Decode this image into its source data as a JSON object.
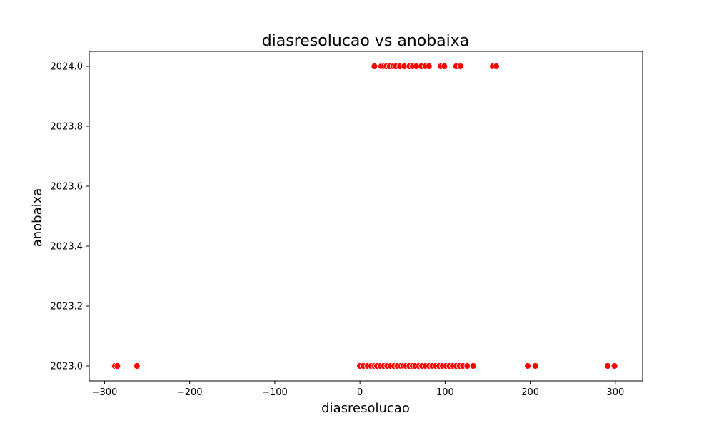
{
  "chart_data": {
    "type": "scatter",
    "title": "diasresolucao vs anobaixa",
    "xlabel": "diasresolucao",
    "ylabel": "anobaixa",
    "xlim": [
      -318,
      332
    ],
    "ylim": [
      2022.95,
      2024.05
    ],
    "x_ticks": [
      -300,
      -200,
      -100,
      0,
      100,
      200,
      300
    ],
    "x_tick_labels": [
      "−300",
      "−200",
      "−100",
      "0",
      "100",
      "200",
      "300"
    ],
    "y_ticks": [
      2023.0,
      2023.2,
      2023.4,
      2023.6,
      2023.8,
      2024.0
    ],
    "y_tick_labels": [
      "2023.0",
      "2023.2",
      "2023.4",
      "2023.6",
      "2023.8",
      "2024.0"
    ],
    "grid": false,
    "marker_color": "#ff0000",
    "marker_edge_color": "#ffffff",
    "series": [
      {
        "points": [
          {
            "x": 17,
            "y": 2024
          },
          {
            "x": 25,
            "y": 2024
          },
          {
            "x": 28,
            "y": 2024
          },
          {
            "x": 31,
            "y": 2024
          },
          {
            "x": 35,
            "y": 2024
          },
          {
            "x": 39,
            "y": 2024
          },
          {
            "x": 42,
            "y": 2024
          },
          {
            "x": 47,
            "y": 2024
          },
          {
            "x": 52,
            "y": 2024
          },
          {
            "x": 58,
            "y": 2024
          },
          {
            "x": 62,
            "y": 2024
          },
          {
            "x": 66,
            "y": 2024
          },
          {
            "x": 72,
            "y": 2024
          },
          {
            "x": 77,
            "y": 2024
          },
          {
            "x": 81,
            "y": 2024
          },
          {
            "x": 95,
            "y": 2024
          },
          {
            "x": 99,
            "y": 2024
          },
          {
            "x": 113,
            "y": 2024
          },
          {
            "x": 118,
            "y": 2024
          },
          {
            "x": 156,
            "y": 2024
          },
          {
            "x": 160,
            "y": 2024
          },
          {
            "x": -288,
            "y": 2023
          },
          {
            "x": -285,
            "y": 2023
          },
          {
            "x": -262,
            "y": 2023
          },
          {
            "x": 0,
            "y": 2023
          },
          {
            "x": 4,
            "y": 2023
          },
          {
            "x": 9,
            "y": 2023
          },
          {
            "x": 13,
            "y": 2023
          },
          {
            "x": 17,
            "y": 2023
          },
          {
            "x": 20,
            "y": 2023
          },
          {
            "x": 24,
            "y": 2023
          },
          {
            "x": 28,
            "y": 2023
          },
          {
            "x": 32,
            "y": 2023
          },
          {
            "x": 36,
            "y": 2023
          },
          {
            "x": 40,
            "y": 2023
          },
          {
            "x": 44,
            "y": 2023
          },
          {
            "x": 48,
            "y": 2023
          },
          {
            "x": 51,
            "y": 2023
          },
          {
            "x": 54,
            "y": 2023
          },
          {
            "x": 58,
            "y": 2023
          },
          {
            "x": 62,
            "y": 2023
          },
          {
            "x": 65,
            "y": 2023
          },
          {
            "x": 69,
            "y": 2023
          },
          {
            "x": 73,
            "y": 2023
          },
          {
            "x": 77,
            "y": 2023
          },
          {
            "x": 81,
            "y": 2023
          },
          {
            "x": 85,
            "y": 2023
          },
          {
            "x": 89,
            "y": 2023
          },
          {
            "x": 93,
            "y": 2023
          },
          {
            "x": 97,
            "y": 2023
          },
          {
            "x": 101,
            "y": 2023
          },
          {
            "x": 105,
            "y": 2023
          },
          {
            "x": 109,
            "y": 2023
          },
          {
            "x": 113,
            "y": 2023
          },
          {
            "x": 117,
            "y": 2023
          },
          {
            "x": 121,
            "y": 2023
          },
          {
            "x": 126,
            "y": 2023
          },
          {
            "x": 133,
            "y": 2023
          },
          {
            "x": 197,
            "y": 2023
          },
          {
            "x": 206,
            "y": 2023
          },
          {
            "x": 291,
            "y": 2023
          },
          {
            "x": 299,
            "y": 2023
          }
        ]
      }
    ]
  }
}
